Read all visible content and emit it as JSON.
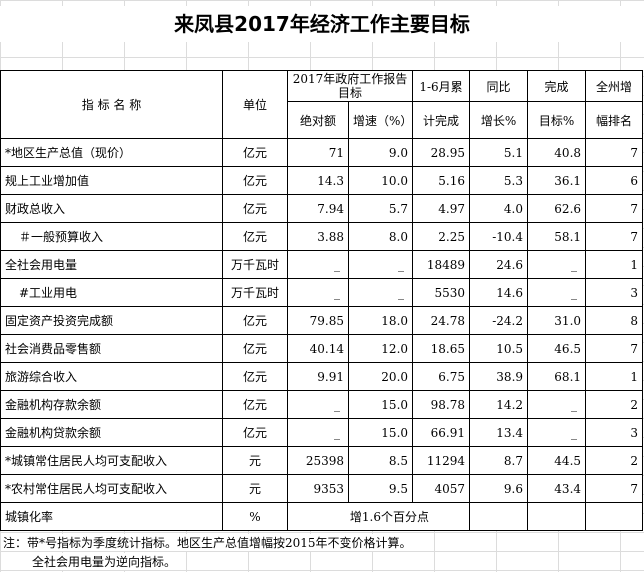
{
  "title": "来凤县2017年经济工作主要目标",
  "header": {
    "indicator": "指 标 名 称",
    "unit": "单位",
    "report_target": "2017年政府工作报告目标",
    "absolute": "绝对额",
    "growth": "增速（%）",
    "h1_6_top": "1-6月累",
    "h1_6_bottom": "计完成",
    "yoy_top": "同比",
    "yoy_bottom": "增长%",
    "complete_top": "完成",
    "complete_bottom": "目标%",
    "rank_top": "全州增",
    "rank_bottom": "幅排名"
  },
  "rows": [
    {
      "name": "*地区生产总值（现价）",
      "unit": "亿元",
      "abs": "71",
      "growth": "9.0",
      "ytd": "28.95",
      "yoy": "5.1",
      "pct": "40.8",
      "rank": "7"
    },
    {
      "name": "规上工业增加值",
      "unit": "亿元",
      "abs": "14.3",
      "growth": "10.0",
      "ytd": "5.16",
      "yoy": "5.3",
      "pct": "36.1",
      "rank": "6"
    },
    {
      "name": "财政总收入",
      "unit": "亿元",
      "abs": "7.94",
      "growth": "5.7",
      "ytd": "4.97",
      "yoy": "4.0",
      "pct": "62.6",
      "rank": "7"
    },
    {
      "name": "＃一般预算收入",
      "unit": "亿元",
      "abs": "3.88",
      "growth": "8.0",
      "ytd": "2.25",
      "yoy": "-10.4",
      "pct": "58.1",
      "rank": "7"
    },
    {
      "name": "全社会用电量",
      "unit": "万千瓦时",
      "abs": "_",
      "growth": "_",
      "ytd": "18489",
      "yoy": "24.6",
      "pct": "_",
      "rank": "1"
    },
    {
      "name": "#工业用电",
      "unit": "万千瓦时",
      "abs": "_",
      "growth": "_",
      "ytd": "5530",
      "yoy": "14.6",
      "pct": "_",
      "rank": "3"
    },
    {
      "name": "固定资产投资完成额",
      "unit": "亿元",
      "abs": "79.85",
      "growth": "18.0",
      "ytd": "24.78",
      "yoy": "-24.2",
      "pct": "31.0",
      "rank": "8"
    },
    {
      "name": "社会消费品零售额",
      "unit": "亿元",
      "abs": "40.14",
      "growth": "12.0",
      "ytd": "18.65",
      "yoy": "10.5",
      "pct": "46.5",
      "rank": "7"
    },
    {
      "name": "旅游综合收入",
      "unit": "亿元",
      "abs": "9.91",
      "growth": "20.0",
      "ytd": "6.75",
      "yoy": "38.9",
      "pct": "68.1",
      "rank": "1"
    },
    {
      "name": "金融机构存款余额",
      "unit": "亿元",
      "abs": "_",
      "growth": "15.0",
      "ytd": "98.78",
      "yoy": "14.2",
      "pct": "_",
      "rank": "2"
    },
    {
      "name": "金融机构贷款余额",
      "unit": "亿元",
      "abs": "_",
      "growth": "15.0",
      "ytd": "66.91",
      "yoy": "13.4",
      "pct": "_",
      "rank": "3"
    },
    {
      "name": "*城镇常住居民人均可支配收入",
      "unit": "元",
      "abs": "25398",
      "growth": "8.5",
      "ytd": "11294",
      "yoy": "8.7",
      "pct": "44.5",
      "rank": "2"
    },
    {
      "name": "*农村常住居民人均可支配收入",
      "unit": "元",
      "abs": "9353",
      "growth": "9.5",
      "ytd": "4057",
      "yoy": "9.6",
      "pct": "43.4",
      "rank": "7"
    }
  ],
  "last_row": {
    "name": "城镇化率",
    "unit": "%",
    "merged": "增1.6个百分点"
  },
  "notes": {
    "line1": "注：带*号指标为季度统计指标。地区生产总值增幅按2015年不变价格计算。",
    "line2": "全社会用电量为逆向指标。"
  }
}
